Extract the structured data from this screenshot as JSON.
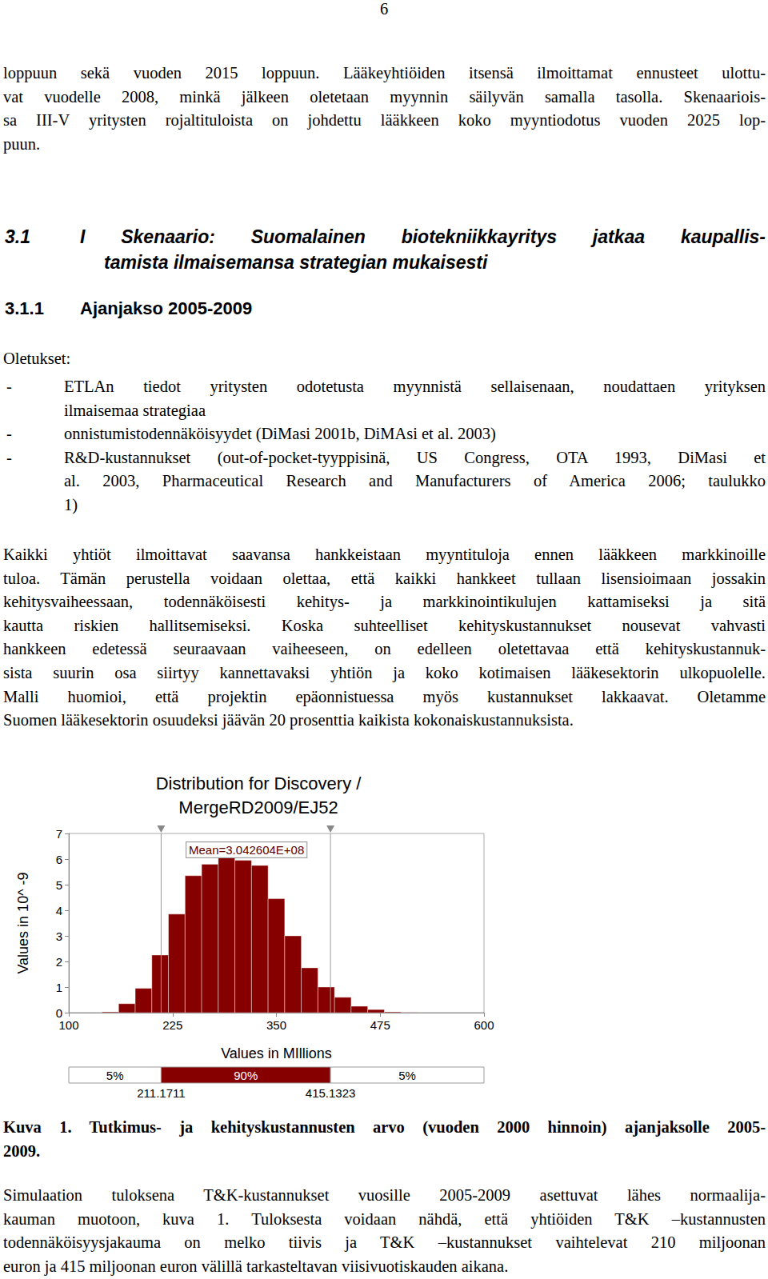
{
  "document": {
    "page_number": "6",
    "intro": {
      "lines": [
        "loppuun sekä vuoden 2015 loppuun. Lääkeyhtiöiden itsensä ilmoittamat ennusteet ulottu-",
        "vat vuodelle 2008, minkä jälkeen oletetaan myynnin säilyvän samalla tasolla. Skenaariois-",
        "sa III-V yritysten rojaltituloista on johdettu lääkkeen koko myyntiodotus vuoden 2025 lop-",
        "puun."
      ]
    },
    "section": {
      "number": "3.1",
      "title_lines": [
        "I Skenaario: Suomalainen biotekniikkayritys jatkaa kaupallis-",
        "tamista ilmaisemansa strategian mukaisesti"
      ]
    },
    "subsection": {
      "number": "3.1.1",
      "title": "Ajanjakso 2005-2009"
    },
    "assumptions_label": "Oletukset:",
    "bullet": "-",
    "assumptions": [
      {
        "lines": [
          "ETLAn tiedot yritysten odotetusta myynnistä sellaisenaan, noudattaen yrityksen",
          "ilmaisemaa strategiaa"
        ]
      },
      {
        "lines": [
          "onnistumistodennäköisyydet (DiMasi 2001b, DiMAsi et al. 2003)"
        ]
      },
      {
        "lines": [
          "R&D-kustannukset (out-of-pocket-tyyppisinä, US Congress, OTA 1993, DiMasi et",
          "al. 2003, Pharmaceutical Research and Manufacturers of America 2006; taulukko",
          "1)"
        ]
      }
    ],
    "paragraph": {
      "lines": [
        "Kaikki yhtiöt ilmoittavat saavansa hankkeistaan myyntituloja ennen lääkkeen markkinoille",
        "tuloa. Tämän perustella voidaan olettaa, että kaikki hankkeet tullaan lisensioimaan jossakin",
        "kehitysvaiheessaan, todennäköisesti kehitys- ja markkinointikulujen kattamiseksi ja sitä",
        "kautta riskien hallitsemiseksi. Koska suhteelliset kehityskustannukset nousevat vahvasti",
        "hankkeen edetessä seuraavaan vaiheeseen, on edelleen oletettavaa että kehityskustannuk-",
        "sista suurin osa siirtyy kannettavaksi yhtiön ja koko kotimaisen lääkesektorin ulkopuolelle.",
        "Malli huomioi, että projektin epäonnistuessa myös kustannukset lakkaavat. Oletamme",
        "Suomen lääkesektorin osuudeksi jäävän 20 prosenttia kaikista kokonaiskustannuksista."
      ]
    },
    "caption": {
      "lines": [
        "Kuva 1. Tutkimus- ja kehityskustannusten arvo (vuoden 2000 hinnoin) ajanjaksolle 2005-",
        "2009."
      ]
    },
    "conclusion": {
      "lines": [
        "Simulaation tuloksena T&K-kustannukset vuosille 2005-2009 asettuvat lähes normaalija-",
        "kauman muotoon, kuva 1. Tuloksesta voidaan nähdä, että yhtiöiden T&K –kustannusten",
        "todennäköisyysjakauma on melko tiivis ja T&K –kustannukset vaihtelevat 210 miljoonan",
        "euron ja 415 miljoonan euron välillä tarkasteltavan viisivuotiskauden aikana."
      ]
    }
  },
  "chart_data": {
    "type": "histogram",
    "title": "Distribution for Discovery /\nMergeRD2009/EJ52",
    "x_label": "Values in MIllions",
    "y_label": "Values in 10^ -9",
    "bins": [
      140,
      160,
      180,
      200,
      220,
      240,
      260,
      280,
      300,
      320,
      340,
      360,
      380,
      400,
      420,
      440,
      460,
      480,
      500,
      520
    ],
    "values": [
      0.03,
      0.35,
      0.95,
      2.25,
      3.85,
      5.35,
      5.8,
      6.05,
      5.95,
      5.75,
      4.45,
      3.0,
      1.75,
      1.0,
      0.6,
      0.25,
      0.12,
      0.03,
      0.01
    ],
    "color": "#870000",
    "xlim": [
      100,
      600
    ],
    "xticks": [
      100,
      225,
      350,
      475,
      600
    ],
    "ylim": [
      0,
      7
    ],
    "yticks": [
      0,
      1,
      2,
      3,
      4,
      5,
      6,
      7
    ],
    "grid": false,
    "mean_label": "Mean=3.042604E+08",
    "markers": [
      211.1711,
      415.1323
    ],
    "band_labels": [
      "5%",
      "90%",
      "5%"
    ]
  }
}
